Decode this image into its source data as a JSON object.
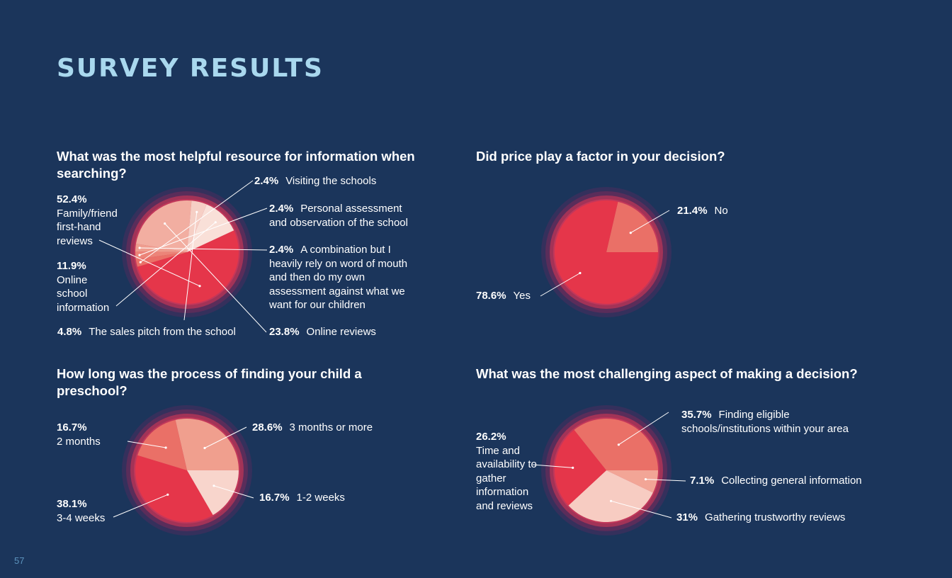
{
  "page": {
    "title": "SURVEY RESULTS",
    "page_number": "57"
  },
  "colors": {
    "background": "#1b355b",
    "title": "#a9d8ee",
    "slice_red": "#e5364a",
    "slice_coral": "#ea7067",
    "slice_salmon": "#ef9d8e",
    "slice_light": "#f4c8bd",
    "slice_pale": "#f8dcd4"
  },
  "chart_data": [
    {
      "type": "pie",
      "title": "What was the most helpful resource for information when searching?",
      "slices": [
        {
          "value": 52.4,
          "pct_label": "52.4%",
          "label": "Family/friend first-hand reviews",
          "color": "#e5364a"
        },
        {
          "value": 2.4,
          "pct_label": "2.4%",
          "label": "Visiting the schools",
          "color": "#ea7067"
        },
        {
          "value": 2.4,
          "pct_label": "2.4%",
          "label": "Personal assessment and observation of the school",
          "color": "#ec8478"
        },
        {
          "value": 2.4,
          "pct_label": "2.4%",
          "label": "A combination but I heavily rely on word of mouth and then do my own assessment against what we want for our children",
          "color": "#ef9d8e"
        },
        {
          "value": 23.8,
          "pct_label": "23.8%",
          "label": "Online reviews",
          "color": "#f2aea1"
        },
        {
          "value": 4.8,
          "pct_label": "4.8%",
          "label": "The sales pitch from the school",
          "color": "#f6cfc5"
        },
        {
          "value": 11.9,
          "pct_label": "11.9%",
          "label": "Online school information",
          "color": "#f9e0d8"
        }
      ]
    },
    {
      "type": "pie",
      "title": "Did price play a factor in your decision?",
      "slices": [
        {
          "value": 21.4,
          "pct_label": "21.4%",
          "label": "No",
          "color": "#ea7067"
        },
        {
          "value": 78.6,
          "pct_label": "78.6%",
          "label": "Yes",
          "color": "#e5364a"
        }
      ]
    },
    {
      "type": "pie",
      "title": "How long was the process of finding your child a preschool?",
      "slices": [
        {
          "value": 28.6,
          "pct_label": "28.6%",
          "label": "3 months or more",
          "color": "#f09f8e"
        },
        {
          "value": 16.7,
          "pct_label": "16.7%",
          "label": "1-2 weeks",
          "color": "#f8d5cc"
        },
        {
          "value": 38.1,
          "pct_label": "38.1%",
          "label": "3-4 weeks",
          "color": "#e5364a"
        },
        {
          "value": 16.7,
          "pct_label": "16.7%",
          "label": "2 months",
          "color": "#ea7067"
        }
      ]
    },
    {
      "type": "pie",
      "title": "What was the most challenging aspect of making a decision?",
      "slices": [
        {
          "value": 7.1,
          "pct_label": "7.1%",
          "label": "Collecting general information",
          "color": "#f2a596"
        },
        {
          "value": 31,
          "pct_label": "31%",
          "label": "Gathering trustworthy reviews",
          "color": "#f7ccc2"
        },
        {
          "value": 26.2,
          "pct_label": "26.2%",
          "label": "Time and availability to gather information and reviews",
          "color": "#e5364a"
        },
        {
          "value": 35.7,
          "pct_label": "35.7%",
          "label": "Finding eligible schools/institutions within your area",
          "color": "#ea7067"
        }
      ]
    }
  ]
}
